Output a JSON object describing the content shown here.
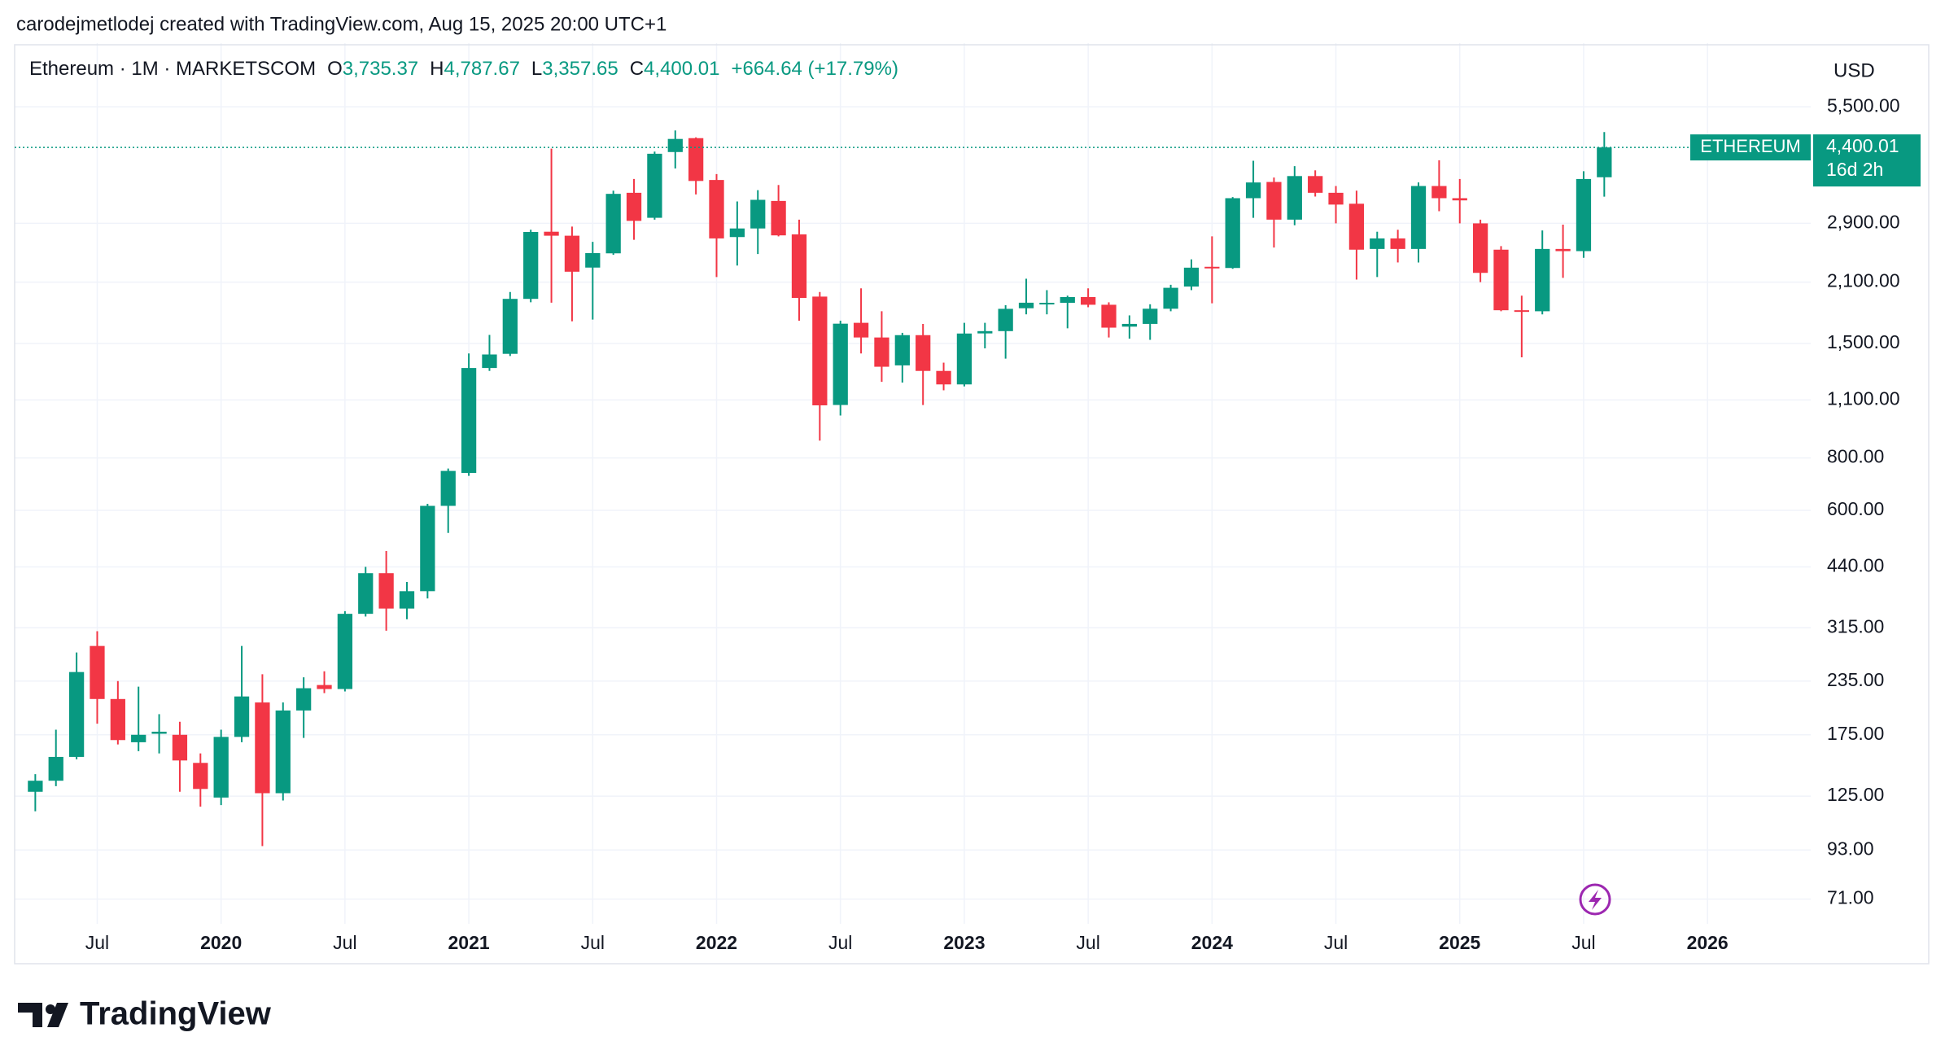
{
  "header": {
    "caption": "carodejmetlodej created with TradingView.com, Aug 15, 2025 20:00 UTC+1"
  },
  "brand": "TradingView",
  "chart_data": {
    "type": "candlestick",
    "currency": "USD",
    "legend": {
      "title": "Ethereum · 1M · MARKETSCOM",
      "items": [
        {
          "key": "O",
          "value": "3,735.37"
        },
        {
          "key": "H",
          "value": "4,787.67"
        },
        {
          "key": "L",
          "value": "3,357.65"
        },
        {
          "key": "C",
          "value": "4,400.01"
        }
      ],
      "change": "+664.64 (+17.79%)"
    },
    "last_price": {
      "series_label": "ETHEREUM",
      "price_label": "4,400.01",
      "countdown": "16d 2h"
    },
    "up_color": "#089981",
    "down_color": "#f23645",
    "log_scale": true,
    "grid": true,
    "x": [
      "2019-04",
      "2019-05",
      "2019-06",
      "2019-07",
      "2019-08",
      "2019-09",
      "2019-10",
      "2019-11",
      "2019-12",
      "2020-01",
      "2020-02",
      "2020-03",
      "2020-04",
      "2020-05",
      "2020-06",
      "2020-07",
      "2020-08",
      "2020-09",
      "2020-10",
      "2020-11",
      "2020-12",
      "2021-01",
      "2021-02",
      "2021-03",
      "2021-04",
      "2021-05",
      "2021-06",
      "2021-07",
      "2021-08",
      "2021-09",
      "2021-10",
      "2021-11",
      "2021-12",
      "2022-01",
      "2022-02",
      "2022-03",
      "2022-04",
      "2022-05",
      "2022-06",
      "2022-07",
      "2022-08",
      "2022-09",
      "2022-10",
      "2022-11",
      "2022-12",
      "2023-01",
      "2023-02",
      "2023-03",
      "2023-04",
      "2023-05",
      "2023-06",
      "2023-07",
      "2023-08",
      "2023-09",
      "2023-10",
      "2023-11",
      "2023-12",
      "2024-01",
      "2024-02",
      "2024-03",
      "2024-04",
      "2024-05",
      "2024-06",
      "2024-07",
      "2024-08",
      "2024-09",
      "2024-10",
      "2024-11",
      "2024-12",
      "2025-01",
      "2025-02",
      "2025-03",
      "2025-04",
      "2025-05",
      "2025-06",
      "2025-07",
      "2025-08"
    ],
    "open": [
      128,
      136,
      155,
      285,
      213,
      168,
      176,
      175,
      150,
      124,
      173,
      209,
      127,
      200,
      230,
      225,
      340,
      425,
      350,
      385,
      615,
      737,
      1311,
      1417,
      1916,
      2770,
      2710,
      2275,
      2460,
      3430,
      2990,
      4290,
      4630,
      3680,
      2690,
      2820,
      3280,
      2730,
      1940,
      1070,
      1680,
      1550,
      1330,
      1570,
      1290,
      1198,
      1585,
      1605,
      1820,
      1870,
      1875,
      1935,
      1855,
      1645,
      1670,
      1815,
      2050,
      2285,
      2270,
      3330,
      3640,
      2960,
      3760,
      3430,
      3230,
      2520,
      2670,
      2520,
      3560,
      3330,
      2900,
      2510,
      1800,
      1790,
      2520,
      2490,
      3735.37
    ],
    "high": [
      141,
      180,
      275,
      309,
      235,
      228,
      196,
      188,
      158,
      180,
      285,
      244,
      209,
      240,
      248,
      345,
      440,
      480,
      405,
      622,
      755,
      1420,
      1572,
      1990,
      2800,
      4370,
      2850,
      2620,
      3470,
      3700,
      4300,
      4830,
      4650,
      3800,
      3270,
      3480,
      3580,
      2960,
      1990,
      1700,
      2030,
      1790,
      1590,
      1670,
      1350,
      1680,
      1680,
      1850,
      2140,
      2010,
      1950,
      2030,
      1880,
      1750,
      1860,
      2070,
      2380,
      2700,
      3350,
      4090,
      3730,
      3970,
      3880,
      3560,
      3470,
      2770,
      2800,
      3630,
      4100,
      3700,
      2960,
      2560,
      1950,
      2790,
      2880,
      3860,
      4787.67
    ],
    "low": [
      115,
      132,
      153,
      186,
      166,
      160,
      158,
      128,
      118,
      119,
      168,
      95,
      122,
      172,
      220,
      222,
      335,
      310,
      330,
      370,
      530,
      725,
      1290,
      1400,
      1880,
      1876,
      1694,
      1710,
      2440,
      2650,
      2960,
      3920,
      3400,
      2160,
      2300,
      2450,
      2700,
      1700,
      880,
      1010,
      1420,
      1215,
      1210,
      1070,
      1160,
      1185,
      1460,
      1380,
      1760,
      1760,
      1630,
      1830,
      1550,
      1540,
      1530,
      1790,
      2010,
      1870,
      2260,
      2990,
      2540,
      2870,
      3360,
      2900,
      2130,
      2160,
      2340,
      2340,
      3100,
      2900,
      2100,
      1790,
      1390,
      1760,
      2150,
      2400,
      3357.65
    ],
    "close": [
      136,
      155,
      247,
      213,
      170,
      175,
      178,
      152,
      130,
      173,
      216,
      127,
      200,
      226,
      225,
      340,
      425,
      350,
      385,
      615,
      745,
      1311,
      1412,
      1916,
      2766,
      2710,
      2224,
      2463,
      3410,
      2940,
      4250,
      4610,
      3660,
      2670,
      2820,
      3300,
      2715,
      1926,
      1068,
      1672,
      1550,
      1320,
      1570,
      1290,
      1198,
      1584,
      1605,
      1814,
      1876,
      1875,
      1935,
      1855,
      1636,
      1670,
      1815,
      2036,
      2274,
      2270,
      3330,
      3630,
      2960,
      3760,
      3430,
      3215,
      2510,
      2670,
      2520,
      3560,
      3330,
      3290,
      2210,
      1800,
      1790,
      2520,
      2490,
      3700,
      4400.01
    ],
    "xlim": [
      "2019-03",
      "2026-06"
    ],
    "xticks": [
      {
        "value": "2019-07",
        "label": "Jul"
      },
      {
        "value": "2020-01",
        "label": "2020"
      },
      {
        "value": "2020-07",
        "label": "Jul"
      },
      {
        "value": "2021-01",
        "label": "2021"
      },
      {
        "value": "2021-07",
        "label": "Jul"
      },
      {
        "value": "2022-01",
        "label": "2022"
      },
      {
        "value": "2022-07",
        "label": "Jul"
      },
      {
        "value": "2023-01",
        "label": "2023"
      },
      {
        "value": "2023-07",
        "label": "Jul"
      },
      {
        "value": "2024-01",
        "label": "2024"
      },
      {
        "value": "2024-07",
        "label": "Jul"
      },
      {
        "value": "2025-01",
        "label": "2025"
      },
      {
        "value": "2025-07",
        "label": "Jul"
      },
      {
        "value": "2026-01",
        "label": "2026"
      }
    ],
    "ylim": [
      62,
      7800
    ],
    "yticks": [
      {
        "value": 5500,
        "label": "5,500.00"
      },
      {
        "value": 2900,
        "label": "2,900.00"
      },
      {
        "value": 2100,
        "label": "2,100.00"
      },
      {
        "value": 1500,
        "label": "1,500.00"
      },
      {
        "value": 1100,
        "label": "1,100.00"
      },
      {
        "value": 800,
        "label": "800.00"
      },
      {
        "value": 600,
        "label": "600.00"
      },
      {
        "value": 440,
        "label": "440.00"
      },
      {
        "value": 315,
        "label": "315.00"
      },
      {
        "value": 235,
        "label": "235.00"
      },
      {
        "value": 175,
        "label": "175.00"
      },
      {
        "value": 125,
        "label": "125.00"
      },
      {
        "value": 93,
        "label": "93.00"
      },
      {
        "value": 71,
        "label": "71.00"
      }
    ]
  }
}
